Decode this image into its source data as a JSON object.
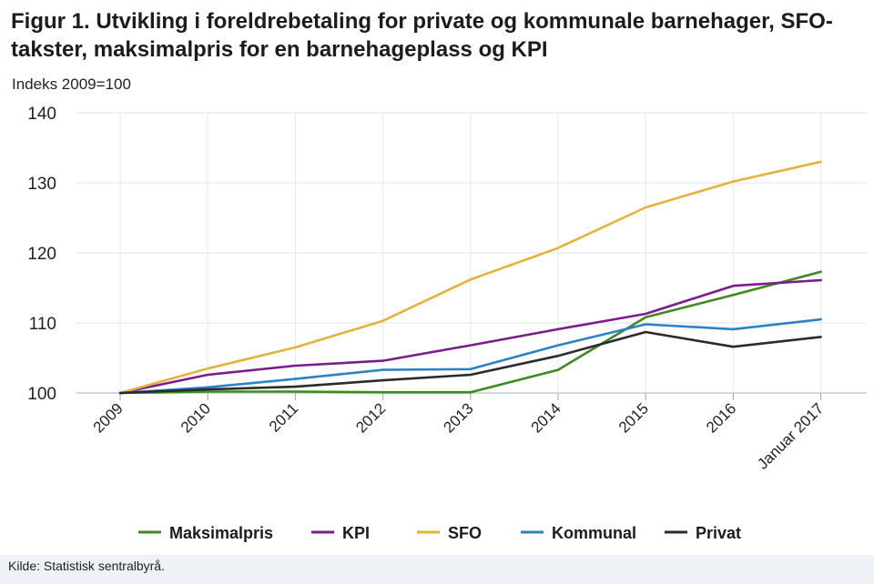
{
  "page": {
    "title": "Figur 1. Utvikling i foreldrebetaling for private og kommunale barnehager, SFO-takster, maksimalpris for en barnehageplass og KPI",
    "subtitle": "Indeks 2009=100",
    "source": "Kilde: Statistisk sentralbyrå."
  },
  "chart_data": {
    "type": "line",
    "title": "Figur 1. Utvikling i foreldrebetaling for private og kommunale barnehager, SFO-takster, maksimalpris for en barnehageplass og KPI",
    "subtitle": "Indeks 2009=100",
    "xlabel": "",
    "ylabel": "Indeks 2009=100",
    "categories": [
      "2009",
      "2010",
      "2011",
      "2012",
      "2013",
      "2014",
      "2015",
      "2016",
      "Januar 2017"
    ],
    "ylim": [
      100,
      140
    ],
    "yticks": [
      100,
      110,
      120,
      130,
      140
    ],
    "grid": true,
    "legend_position": "bottom",
    "series": [
      {
        "name": "Maksimalpris",
        "color": "#3d8a1f",
        "values": [
          100,
          100.2,
          100.2,
          100.1,
          100.1,
          103.3,
          110.8,
          114.0,
          117.3
        ]
      },
      {
        "name": "KPI",
        "color": "#7a1c8c",
        "values": [
          100,
          102.6,
          103.9,
          104.6,
          106.8,
          109.1,
          111.3,
          115.3,
          116.1
        ]
      },
      {
        "name": "SFO",
        "color": "#e6b23a",
        "values": [
          100,
          103.5,
          106.5,
          110.3,
          116.2,
          120.7,
          126.5,
          130.2,
          133.0
        ]
      },
      {
        "name": "Kommunal",
        "color": "#2a83c6",
        "values": [
          100,
          100.8,
          102.0,
          103.3,
          103.4,
          106.8,
          109.8,
          109.1,
          110.5
        ]
      },
      {
        "name": "Privat",
        "color": "#2b2b2b",
        "values": [
          100,
          100.5,
          100.9,
          101.8,
          102.6,
          105.3,
          108.7,
          106.6,
          108.0
        ]
      }
    ]
  }
}
